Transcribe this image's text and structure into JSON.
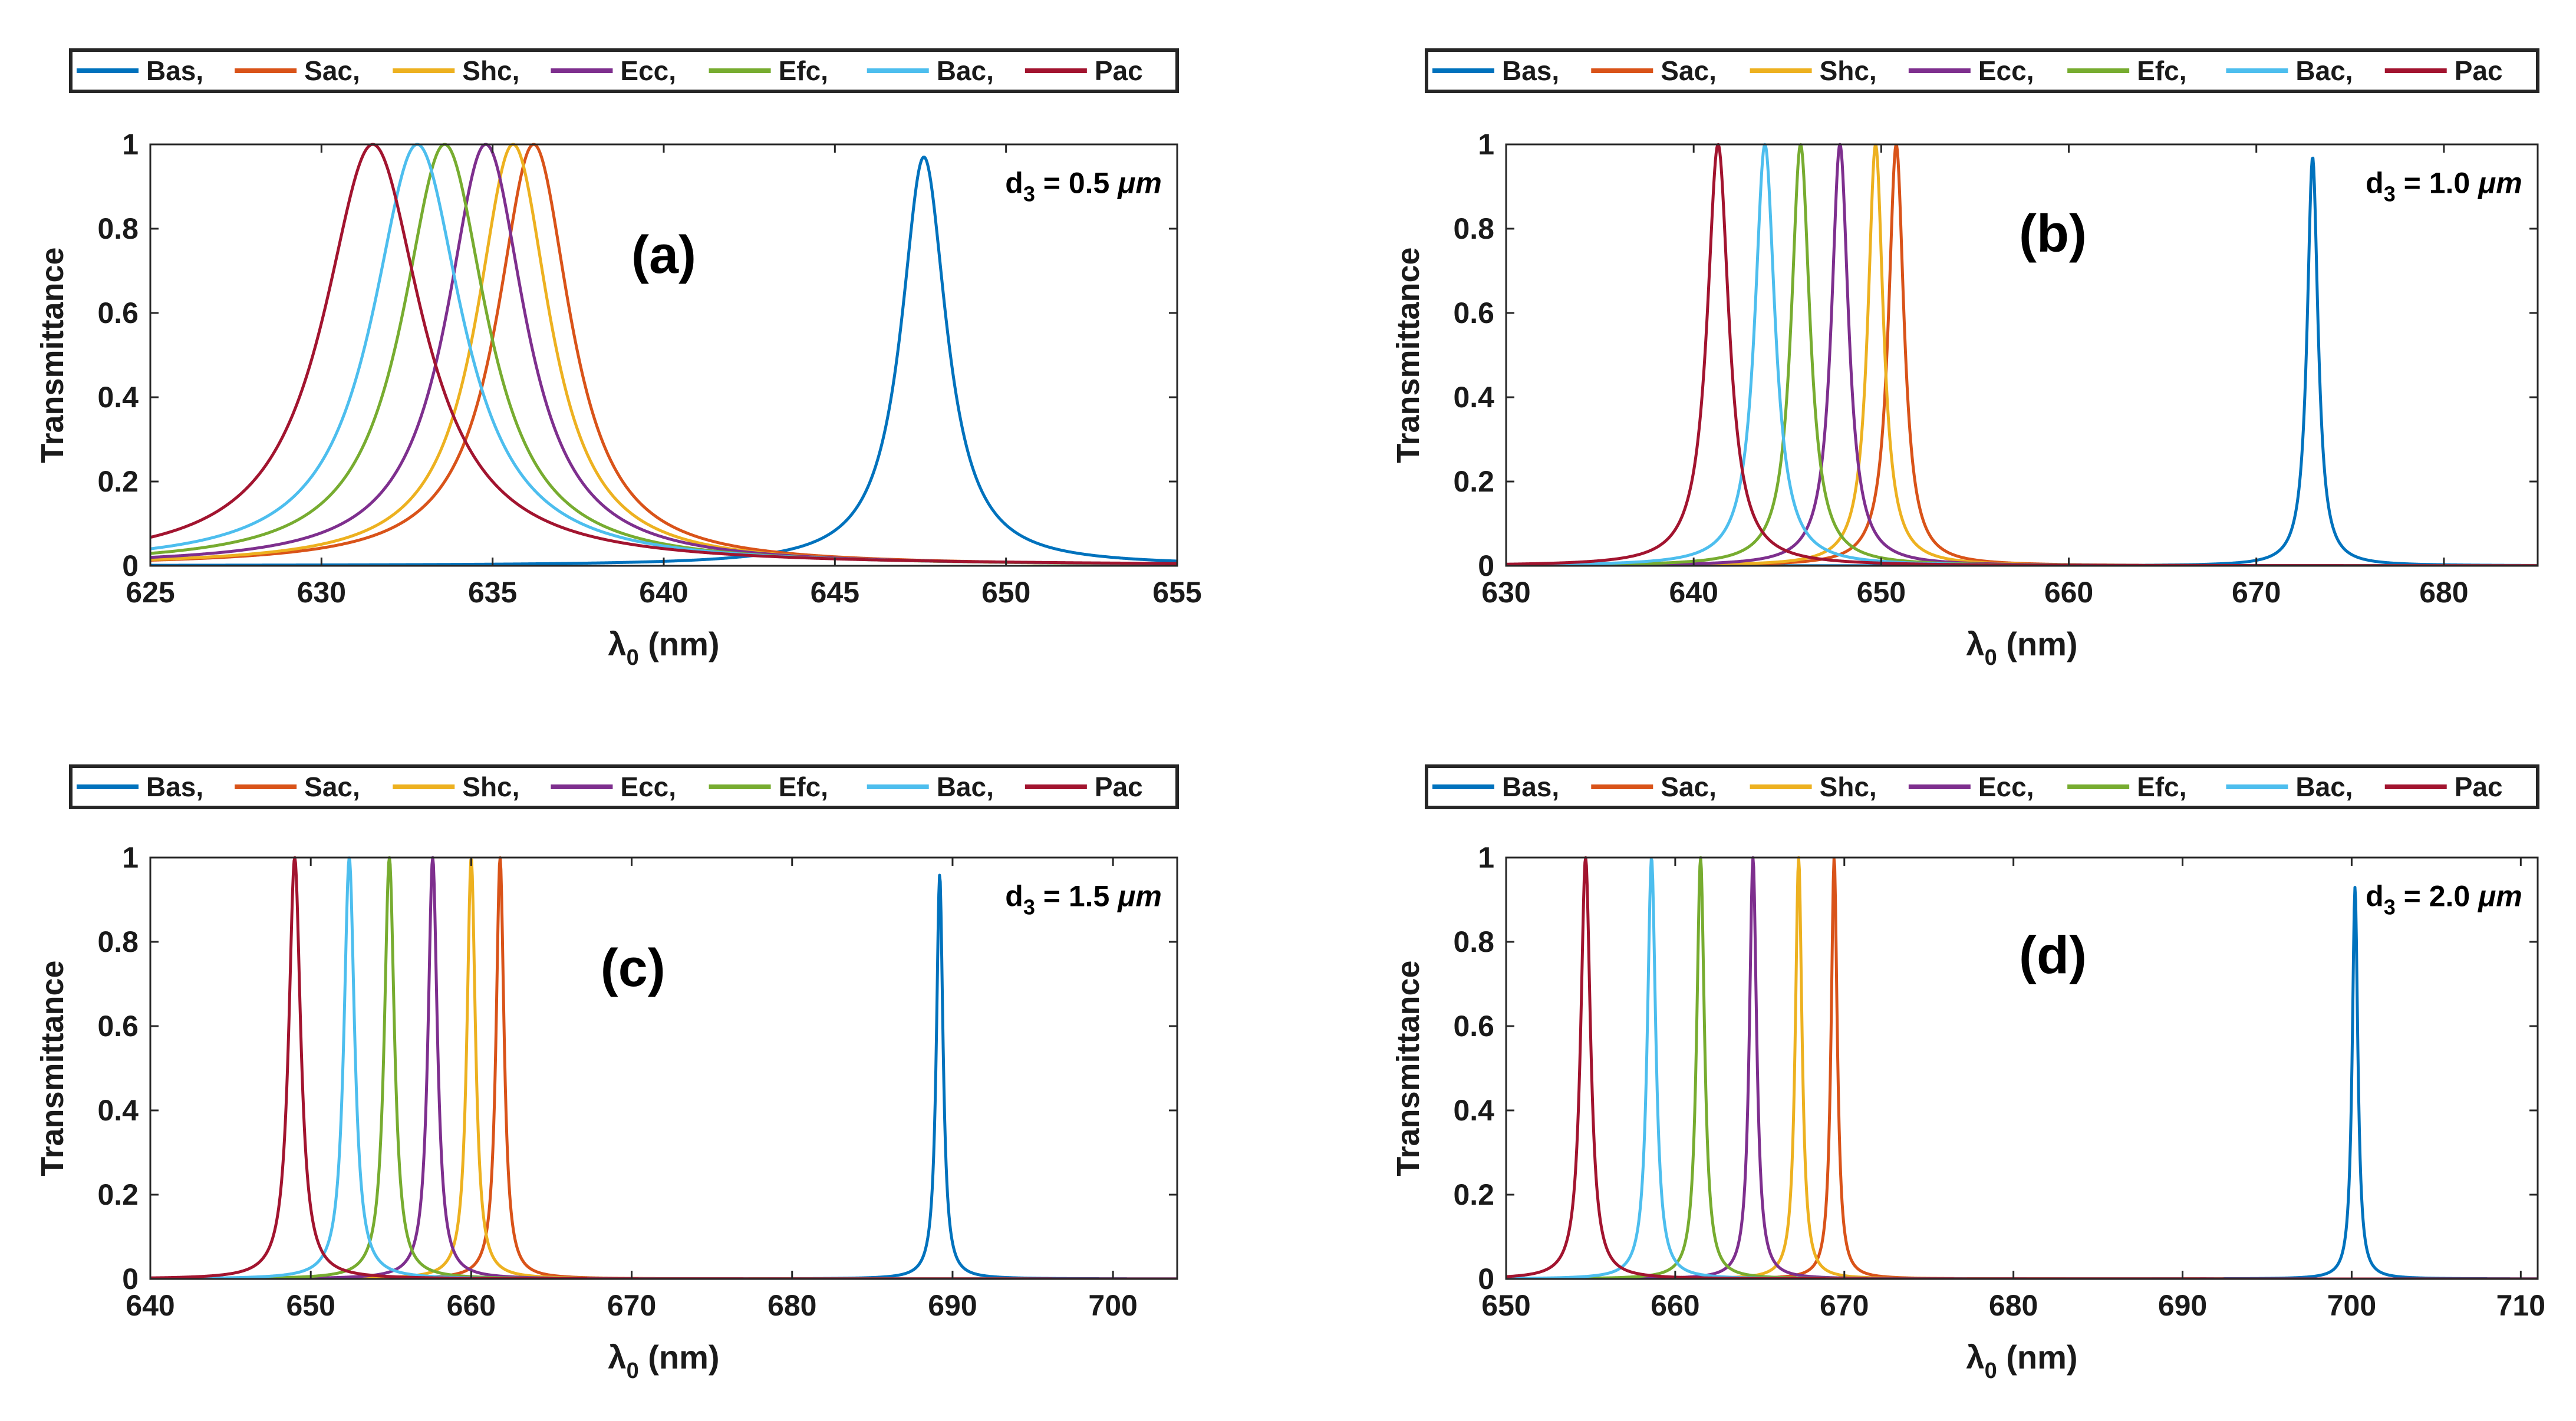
{
  "figure": {
    "colors": {
      "Bas": "#0072BD",
      "Sac": "#D95319",
      "Shc": "#EDB120",
      "Ecc": "#7E2F8E",
      "Efc": "#77AC30",
      "Bac": "#4DBEEE",
      "Pac": "#A2142F",
      "axis": "#262626",
      "label_color": "#1a1a1a"
    }
  },
  "chart_data": [
    {
      "type": "line",
      "panel": "(a)",
      "annotation": {
        "prefix": "d",
        "subscript": "3",
        "value": " = 0.5 ",
        "unit": "μm"
      },
      "legend": [
        "Bas,",
        "Sac,",
        "Shc,",
        "Ecc,",
        "Efc,",
        "Bac,",
        "Pac"
      ],
      "xlabel": {
        "symbol": "λ",
        "subscript": "0",
        "unit": " (nm)"
      },
      "ylabel": "Transmittance",
      "xlim": [
        625,
        655
      ],
      "ylim": [
        0,
        1
      ],
      "xticks": [
        "625",
        "630",
        "635",
        "640",
        "645",
        "650",
        "655"
      ],
      "yticks": [
        "0",
        "0.2",
        "0.4",
        "0.6",
        "0.8",
        "1"
      ],
      "series": [
        {
          "name": "Bas",
          "center": 647.6,
          "hwhm": 0.8,
          "peak": 0.97
        },
        {
          "name": "Sac",
          "center": 636.2,
          "hwhm": 1.3,
          "peak": 1.0
        },
        {
          "name": "Shc",
          "center": 635.6,
          "hwhm": 1.3,
          "peak": 1.0
        },
        {
          "name": "Ecc",
          "center": 634.8,
          "hwhm": 1.4,
          "peak": 1.0
        },
        {
          "name": "Efc",
          "center": 633.6,
          "hwhm": 1.5,
          "peak": 1.0
        },
        {
          "name": "Bac",
          "center": 632.8,
          "hwhm": 1.6,
          "peak": 1.0
        },
        {
          "name": "Pac",
          "center": 631.5,
          "hwhm": 1.75,
          "peak": 1.0
        }
      ]
    },
    {
      "type": "line",
      "panel": "(b)",
      "annotation": {
        "prefix": "d",
        "subscript": "3",
        "value": " = 1.0 ",
        "unit": "μm"
      },
      "legend": [
        "Bas,",
        "Sac,",
        "Shc,",
        "Ecc,",
        "Efc,",
        "Bac,",
        "Pac"
      ],
      "xlabel": {
        "symbol": "λ",
        "subscript": "0",
        "unit": " (nm)"
      },
      "ylabel": "Transmittance",
      "xlim": [
        630,
        685
      ],
      "ylim": [
        0,
        1
      ],
      "xticks": [
        "630",
        "640",
        "650",
        "660",
        "670",
        "680"
      ],
      "yticks": [
        "0",
        "0.2",
        "0.4",
        "0.6",
        "0.8",
        "1"
      ],
      "series": [
        {
          "name": "Bas",
          "center": 673.0,
          "hwhm": 0.35,
          "peak": 0.97
        },
        {
          "name": "Sac",
          "center": 650.8,
          "hwhm": 0.5,
          "peak": 1.0
        },
        {
          "name": "Shc",
          "center": 649.7,
          "hwhm": 0.5,
          "peak": 1.0
        },
        {
          "name": "Ecc",
          "center": 647.8,
          "hwhm": 0.55,
          "peak": 1.0
        },
        {
          "name": "Efc",
          "center": 645.7,
          "hwhm": 0.6,
          "peak": 1.0
        },
        {
          "name": "Bac",
          "center": 643.8,
          "hwhm": 0.65,
          "peak": 1.0
        },
        {
          "name": "Pac",
          "center": 641.3,
          "hwhm": 0.7,
          "peak": 1.0
        }
      ]
    },
    {
      "type": "line",
      "panel": "(c)",
      "annotation": {
        "prefix": "d",
        "subscript": "3",
        "value": " = 1.5 ",
        "unit": "μm"
      },
      "legend": [
        "Bas,",
        "Sac,",
        "Shc,",
        "Ecc,",
        "Efc,",
        "Bac,",
        "Pac"
      ],
      "xlabel": {
        "symbol": "λ",
        "subscript": "0",
        "unit": " (nm)"
      },
      "ylabel": "Transmittance",
      "xlim": [
        640,
        704
      ],
      "ylim": [
        0,
        1
      ],
      "xticks": [
        "640",
        "650",
        "660",
        "670",
        "680",
        "690",
        "700"
      ],
      "yticks": [
        "0",
        "0.2",
        "0.4",
        "0.6",
        "0.8",
        "1"
      ],
      "series": [
        {
          "name": "Bas",
          "center": 689.2,
          "hwhm": 0.25,
          "peak": 0.96
        },
        {
          "name": "Sac",
          "center": 661.8,
          "hwhm": 0.3,
          "peak": 1.0
        },
        {
          "name": "Shc",
          "center": 660.0,
          "hwhm": 0.32,
          "peak": 1.0
        },
        {
          "name": "Ecc",
          "center": 657.6,
          "hwhm": 0.35,
          "peak": 1.0
        },
        {
          "name": "Efc",
          "center": 654.9,
          "hwhm": 0.38,
          "peak": 1.0
        },
        {
          "name": "Bac",
          "center": 652.4,
          "hwhm": 0.4,
          "peak": 1.0
        },
        {
          "name": "Pac",
          "center": 649.0,
          "hwhm": 0.45,
          "peak": 1.0
        }
      ]
    },
    {
      "type": "line",
      "panel": "(d)",
      "annotation": {
        "prefix": "d",
        "subscript": "3",
        "value": " = 2.0 ",
        "unit": "μm"
      },
      "legend": [
        "Bas,",
        "Sac,",
        "Shc,",
        "Ecc,",
        "Efc,",
        "Bac,",
        "Pac"
      ],
      "xlabel": {
        "symbol": "λ",
        "subscript": "0",
        "unit": " (nm)"
      },
      "ylabel": "Transmittance",
      "xlim": [
        650,
        711
      ],
      "ylim": [
        0,
        1
      ],
      "xticks": [
        "650",
        "660",
        "670",
        "680",
        "690",
        "700",
        "710"
      ],
      "yticks": [
        "0",
        "0.2",
        "0.4",
        "0.6",
        "0.8",
        "1"
      ],
      "series": [
        {
          "name": "Bas",
          "center": 700.2,
          "hwhm": 0.2,
          "peak": 0.93
        },
        {
          "name": "Sac",
          "center": 669.4,
          "hwhm": 0.22,
          "peak": 1.0
        },
        {
          "name": "Shc",
          "center": 667.3,
          "hwhm": 0.24,
          "peak": 1.0
        },
        {
          "name": "Ecc",
          "center": 664.6,
          "hwhm": 0.26,
          "peak": 1.0
        },
        {
          "name": "Efc",
          "center": 661.5,
          "hwhm": 0.28,
          "peak": 1.0
        },
        {
          "name": "Bac",
          "center": 658.6,
          "hwhm": 0.3,
          "peak": 1.0
        },
        {
          "name": "Pac",
          "center": 654.7,
          "hwhm": 0.35,
          "peak": 1.0
        }
      ]
    }
  ]
}
